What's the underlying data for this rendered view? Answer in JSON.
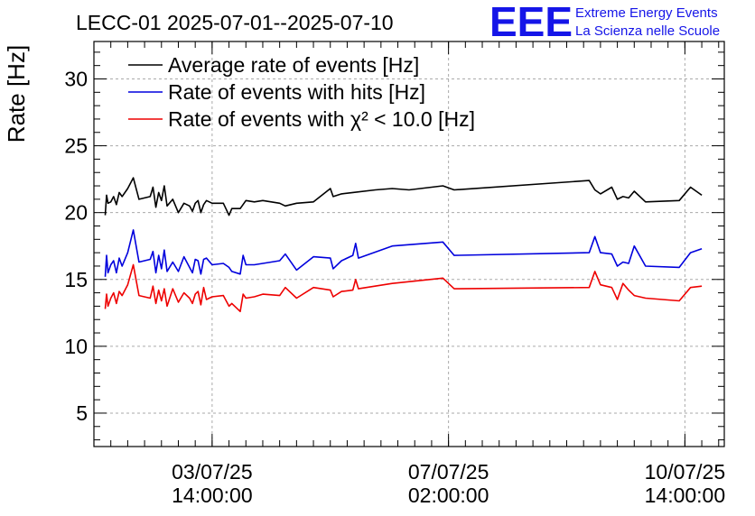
{
  "header": {
    "title": "LECC-01 2025-07-01--2025-07-10"
  },
  "logo": {
    "mark": "EEE",
    "line1": "Extreme Energy Events",
    "line2": "La Scienza nelle Scuole",
    "color": "#1515e8"
  },
  "chart_data": {
    "type": "line",
    "title": "LECC-01 2025-07-01--2025-07-10",
    "ylabel": "Rate [Hz]",
    "xlabel": "",
    "xlim": [
      "2025-07-01T20:00",
      "2025-07-11T04:00"
    ],
    "ylim": [
      2.5,
      32.8
    ],
    "yticks": [
      5,
      10,
      15,
      20,
      25,
      30
    ],
    "xticks": [
      {
        "x": "2025-07-03T14:00",
        "date": "03/07/25",
        "time": "14:00:00"
      },
      {
        "x": "2025-07-07T02:00",
        "date": "07/07/25",
        "time": "02:00:00"
      },
      {
        "x": "2025-07-10T14:00",
        "date": "10/07/25",
        "time": "14:00:00"
      }
    ],
    "grid": true,
    "legend_position": "top-left",
    "series": [
      {
        "name": "Average rate of events [Hz]",
        "color": "#000000",
        "points": [
          [
            "2025-07-02T00:00",
            19.8
          ],
          [
            "2025-07-02T00:30",
            21.3
          ],
          [
            "2025-07-02T01:00",
            20.7
          ],
          [
            "2025-07-02T02:00",
            20.8
          ],
          [
            "2025-07-02T03:00",
            21.2
          ],
          [
            "2025-07-02T04:00",
            20.6
          ],
          [
            "2025-07-02T05:00",
            21.5
          ],
          [
            "2025-07-02T06:00",
            21.2
          ],
          [
            "2025-07-02T08:00",
            21.8
          ],
          [
            "2025-07-02T10:00",
            22.6
          ],
          [
            "2025-07-02T12:00",
            21.0
          ],
          [
            "2025-07-02T16:00",
            21.2
          ],
          [
            "2025-07-02T17:00",
            21.9
          ],
          [
            "2025-07-02T18:00",
            20.4
          ],
          [
            "2025-07-02T19:00",
            21.5
          ],
          [
            "2025-07-02T20:00",
            20.9
          ],
          [
            "2025-07-02T21:00",
            22.0
          ],
          [
            "2025-07-02T22:00",
            20.5
          ],
          [
            "2025-07-03T00:00",
            21.0
          ],
          [
            "2025-07-03T02:00",
            20.0
          ],
          [
            "2025-07-03T04:00",
            20.7
          ],
          [
            "2025-07-03T06:00",
            20.5
          ],
          [
            "2025-07-03T07:00",
            20.1
          ],
          [
            "2025-07-03T08:00",
            20.7
          ],
          [
            "2025-07-03T09:00",
            20.9
          ],
          [
            "2025-07-03T10:00",
            20.0
          ],
          [
            "2025-07-03T11:00",
            20.6
          ],
          [
            "2025-07-03T12:00",
            20.9
          ],
          [
            "2025-07-03T14:00",
            20.7
          ],
          [
            "2025-07-03T18:00",
            20.7
          ],
          [
            "2025-07-03T20:00",
            19.8
          ],
          [
            "2025-07-03T21:00",
            20.3
          ],
          [
            "2025-07-04T00:00",
            20.3
          ],
          [
            "2025-07-04T02:00",
            20.9
          ],
          [
            "2025-07-04T05:00",
            20.8
          ],
          [
            "2025-07-04T08:00",
            20.9
          ],
          [
            "2025-07-04T14:00",
            20.7
          ],
          [
            "2025-07-04T16:00",
            20.5
          ],
          [
            "2025-07-04T20:00",
            20.7
          ],
          [
            "2025-07-05T02:00",
            20.8
          ],
          [
            "2025-07-05T08:00",
            21.8
          ],
          [
            "2025-07-05T09:00",
            21.2
          ],
          [
            "2025-07-05T12:00",
            21.4
          ],
          [
            "2025-07-05T16:00",
            21.5
          ],
          [
            "2025-07-06T00:00",
            21.7
          ],
          [
            "2025-07-06T06:00",
            21.8
          ],
          [
            "2025-07-06T12:00",
            21.7
          ],
          [
            "2025-07-07T00:00",
            22.0
          ],
          [
            "2025-07-07T04:00",
            21.7
          ],
          [
            "2025-07-09T04:00",
            22.4
          ],
          [
            "2025-07-09T06:00",
            21.7
          ],
          [
            "2025-07-09T08:00",
            21.4
          ],
          [
            "2025-07-09T12:00",
            21.9
          ],
          [
            "2025-07-09T14:00",
            21.0
          ],
          [
            "2025-07-09T16:00",
            21.2
          ],
          [
            "2025-07-09T18:00",
            21.1
          ],
          [
            "2025-07-09T20:00",
            21.6
          ],
          [
            "2025-07-10T00:00",
            20.8
          ],
          [
            "2025-07-10T12:00",
            20.9
          ],
          [
            "2025-07-10T16:00",
            21.9
          ],
          [
            "2025-07-10T20:00",
            21.3
          ]
        ]
      },
      {
        "name": "Rate of events with hits [Hz]",
        "color": "#0000dd",
        "points": [
          [
            "2025-07-02T00:00",
            15.2
          ],
          [
            "2025-07-02T00:30",
            16.8
          ],
          [
            "2025-07-02T01:00",
            15.5
          ],
          [
            "2025-07-02T02:00",
            16.1
          ],
          [
            "2025-07-02T03:00",
            16.4
          ],
          [
            "2025-07-02T04:00",
            15.5
          ],
          [
            "2025-07-02T05:00",
            16.6
          ],
          [
            "2025-07-02T06:00",
            16.0
          ],
          [
            "2025-07-02T08:00",
            17.0
          ],
          [
            "2025-07-02T10:00",
            18.7
          ],
          [
            "2025-07-02T12:00",
            16.3
          ],
          [
            "2025-07-02T16:00",
            16.5
          ],
          [
            "2025-07-02T17:00",
            17.1
          ],
          [
            "2025-07-02T18:00",
            15.5
          ],
          [
            "2025-07-02T19:00",
            16.8
          ],
          [
            "2025-07-02T20:00",
            15.8
          ],
          [
            "2025-07-02T21:00",
            17.2
          ],
          [
            "2025-07-02T22:00",
            15.6
          ],
          [
            "2025-07-03T00:00",
            16.3
          ],
          [
            "2025-07-03T02:00",
            15.6
          ],
          [
            "2025-07-03T04:00",
            16.7
          ],
          [
            "2025-07-03T06:00",
            15.9
          ],
          [
            "2025-07-03T07:00",
            15.5
          ],
          [
            "2025-07-03T08:00",
            16.5
          ],
          [
            "2025-07-03T09:00",
            16.4
          ],
          [
            "2025-07-03T10:00",
            15.4
          ],
          [
            "2025-07-03T11:00",
            16.5
          ],
          [
            "2025-07-03T12:00",
            16.6
          ],
          [
            "2025-07-03T14:00",
            16.1
          ],
          [
            "2025-07-03T18:00",
            16.2
          ],
          [
            "2025-07-03T20:00",
            15.9
          ],
          [
            "2025-07-03T21:00",
            15.6
          ],
          [
            "2025-07-04T00:00",
            15.4
          ],
          [
            "2025-07-04T01:00",
            16.8
          ],
          [
            "2025-07-04T02:00",
            16.1
          ],
          [
            "2025-07-04T05:00",
            16.1
          ],
          [
            "2025-07-04T08:00",
            16.2
          ],
          [
            "2025-07-04T14:00",
            16.4
          ],
          [
            "2025-07-04T16:00",
            16.9
          ],
          [
            "2025-07-04T20:00",
            15.7
          ],
          [
            "2025-07-05T02:00",
            16.7
          ],
          [
            "2025-07-05T08:00",
            16.6
          ],
          [
            "2025-07-05T09:00",
            15.8
          ],
          [
            "2025-07-05T12:00",
            16.4
          ],
          [
            "2025-07-05T16:00",
            16.8
          ],
          [
            "2025-07-05T17:00",
            17.7
          ],
          [
            "2025-07-05T18:00",
            16.6
          ],
          [
            "2025-07-06T06:00",
            17.5
          ],
          [
            "2025-07-07T00:00",
            17.8
          ],
          [
            "2025-07-07T04:00",
            16.8
          ],
          [
            "2025-07-09T04:00",
            17.0
          ],
          [
            "2025-07-09T06:00",
            18.2
          ],
          [
            "2025-07-09T08:00",
            17.0
          ],
          [
            "2025-07-09T12:00",
            16.9
          ],
          [
            "2025-07-09T14:00",
            16.0
          ],
          [
            "2025-07-09T16:00",
            16.3
          ],
          [
            "2025-07-09T18:00",
            16.2
          ],
          [
            "2025-07-09T20:00",
            17.5
          ],
          [
            "2025-07-10T00:00",
            16.0
          ],
          [
            "2025-07-10T12:00",
            15.9
          ],
          [
            "2025-07-10T16:00",
            17.0
          ],
          [
            "2025-07-10T20:00",
            17.3
          ]
        ]
      },
      {
        "name": "Rate of events with χ² < 10.0 [Hz]",
        "color": "#ee0000",
        "points": [
          [
            "2025-07-02T00:00",
            12.8
          ],
          [
            "2025-07-02T00:30",
            13.9
          ],
          [
            "2025-07-02T01:00",
            13.0
          ],
          [
            "2025-07-02T02:00",
            13.6
          ],
          [
            "2025-07-02T03:00",
            14.0
          ],
          [
            "2025-07-02T04:00",
            13.2
          ],
          [
            "2025-07-02T05:00",
            14.1
          ],
          [
            "2025-07-02T06:00",
            13.8
          ],
          [
            "2025-07-02T08:00",
            14.6
          ],
          [
            "2025-07-02T10:00",
            16.1
          ],
          [
            "2025-07-02T12:00",
            13.8
          ],
          [
            "2025-07-02T16:00",
            13.6
          ],
          [
            "2025-07-02T17:00",
            14.5
          ],
          [
            "2025-07-02T18:00",
            13.2
          ],
          [
            "2025-07-02T19:00",
            14.2
          ],
          [
            "2025-07-02T20:00",
            13.4
          ],
          [
            "2025-07-02T21:00",
            14.3
          ],
          [
            "2025-07-02T22:00",
            13.0
          ],
          [
            "2025-07-03T00:00",
            14.3
          ],
          [
            "2025-07-03T02:00",
            13.3
          ],
          [
            "2025-07-03T04:00",
            14.0
          ],
          [
            "2025-07-03T06:00",
            13.6
          ],
          [
            "2025-07-03T07:00",
            13.2
          ],
          [
            "2025-07-03T08:00",
            13.9
          ],
          [
            "2025-07-03T09:00",
            14.1
          ],
          [
            "2025-07-03T10:00",
            13.1
          ],
          [
            "2025-07-03T11:00",
            14.4
          ],
          [
            "2025-07-03T12:00",
            13.5
          ],
          [
            "2025-07-03T14:00",
            13.7
          ],
          [
            "2025-07-03T18:00",
            13.8
          ],
          [
            "2025-07-03T20:00",
            13.0
          ],
          [
            "2025-07-03T21:00",
            13.2
          ],
          [
            "2025-07-04T00:00",
            12.6
          ],
          [
            "2025-07-04T01:00",
            13.9
          ],
          [
            "2025-07-04T02:00",
            13.6
          ],
          [
            "2025-07-04T05:00",
            13.7
          ],
          [
            "2025-07-04T08:00",
            13.9
          ],
          [
            "2025-07-04T14:00",
            13.8
          ],
          [
            "2025-07-04T16:00",
            14.4
          ],
          [
            "2025-07-04T20:00",
            13.6
          ],
          [
            "2025-07-05T02:00",
            14.4
          ],
          [
            "2025-07-05T08:00",
            14.2
          ],
          [
            "2025-07-05T09:00",
            13.7
          ],
          [
            "2025-07-05T12:00",
            14.1
          ],
          [
            "2025-07-05T16:00",
            14.2
          ],
          [
            "2025-07-05T17:00",
            15.0
          ],
          [
            "2025-07-05T18:00",
            14.3
          ],
          [
            "2025-07-06T06:00",
            14.7
          ],
          [
            "2025-07-07T00:00",
            15.1
          ],
          [
            "2025-07-07T04:00",
            14.3
          ],
          [
            "2025-07-09T04:00",
            14.4
          ],
          [
            "2025-07-09T06:00",
            15.6
          ],
          [
            "2025-07-09T08:00",
            14.6
          ],
          [
            "2025-07-09T12:00",
            14.4
          ],
          [
            "2025-07-09T14:00",
            13.5
          ],
          [
            "2025-07-09T16:00",
            14.7
          ],
          [
            "2025-07-09T18:00",
            14.2
          ],
          [
            "2025-07-09T20:00",
            13.8
          ],
          [
            "2025-07-10T00:00",
            13.6
          ],
          [
            "2025-07-10T12:00",
            13.4
          ],
          [
            "2025-07-10T16:00",
            14.4
          ],
          [
            "2025-07-10T20:00",
            14.5
          ]
        ]
      }
    ]
  }
}
